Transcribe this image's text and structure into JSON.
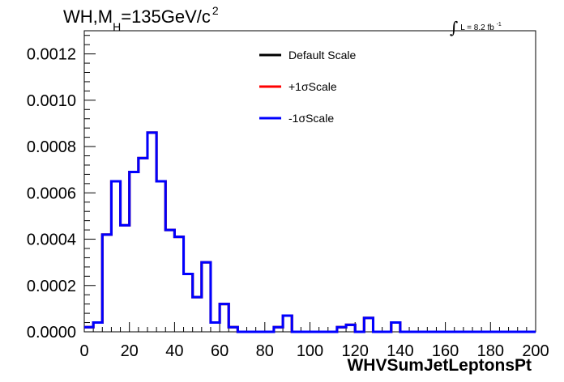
{
  "title": {
    "main": "WH,M",
    "sub": "H",
    "rest": "=135GeV/c",
    "sup": "2"
  },
  "lumi": {
    "prefix": "L = 8.2 fb",
    "sup": "-1"
  },
  "chart_data": {
    "type": "line",
    "xlabel": "WHVSumJetLeptonsPt",
    "ylabel": "",
    "xlim": [
      0,
      200
    ],
    "ylim": [
      0,
      0.0013
    ],
    "x_ticks": [
      "0",
      "20",
      "40",
      "60",
      "80",
      "100",
      "120",
      "140",
      "160",
      "180",
      "200"
    ],
    "y_ticks": [
      "0.0000",
      "0.0002",
      "0.0004",
      "0.0006",
      "0.0008",
      "0.0010",
      "0.0012"
    ],
    "bin_width": 4,
    "bin_edges": [
      0,
      200
    ],
    "legend_position": "top-center",
    "grid": false,
    "series": [
      {
        "name": "Default Scale",
        "color": "#000000",
        "values": [
          2e-05,
          4e-05,
          0.00042,
          0.00065,
          0.00046,
          0.00069,
          0.00075,
          0.00086,
          0.00065,
          0.00044,
          0.00041,
          0.00025,
          0.00015,
          0.0003,
          4e-05,
          0.00012,
          2e-05,
          0.0,
          0.0,
          0.0,
          0.0,
          2e-05,
          7e-05,
          0.0,
          0.0,
          0.0,
          0.0,
          0.0,
          2e-05,
          3e-05,
          0.0,
          6e-05,
          0.0,
          0.0,
          4e-05,
          0.0,
          0.0,
          0.0,
          0.0,
          0.0,
          0.0,
          0.0,
          0.0,
          0.0,
          0.0,
          0.0,
          0.0,
          0.0,
          0.0,
          0.0
        ]
      },
      {
        "name": "+1σScale",
        "color": "#ff0000",
        "values": [
          2e-05,
          4e-05,
          0.00042,
          0.00065,
          0.00046,
          0.00069,
          0.00075,
          0.00086,
          0.00065,
          0.00044,
          0.00041,
          0.00025,
          0.00015,
          0.0003,
          4e-05,
          0.00012,
          2e-05,
          0.0,
          0.0,
          0.0,
          0.0,
          2e-05,
          7e-05,
          0.0,
          0.0,
          0.0,
          0.0,
          0.0,
          2e-05,
          3e-05,
          0.0,
          6e-05,
          0.0,
          0.0,
          4e-05,
          0.0,
          0.0,
          0.0,
          0.0,
          0.0,
          0.0,
          0.0,
          0.0,
          0.0,
          0.0,
          0.0,
          0.0,
          0.0,
          0.0,
          0.0
        ]
      },
      {
        "name": "-1σScale",
        "color": "#0000ff",
        "values": [
          2e-05,
          4e-05,
          0.00042,
          0.00065,
          0.00046,
          0.00069,
          0.00075,
          0.00086,
          0.00065,
          0.00044,
          0.00041,
          0.00025,
          0.00015,
          0.0003,
          4e-05,
          0.00012,
          2e-05,
          0.0,
          0.0,
          0.0,
          0.0,
          2e-05,
          7e-05,
          0.0,
          0.0,
          0.0,
          0.0,
          0.0,
          2e-05,
          3e-05,
          0.0,
          6e-05,
          0.0,
          0.0,
          4e-05,
          0.0,
          0.0,
          0.0,
          0.0,
          0.0,
          0.0,
          0.0,
          0.0,
          0.0,
          0.0,
          0.0,
          0.0,
          0.0,
          0.0,
          0.0
        ]
      }
    ]
  }
}
